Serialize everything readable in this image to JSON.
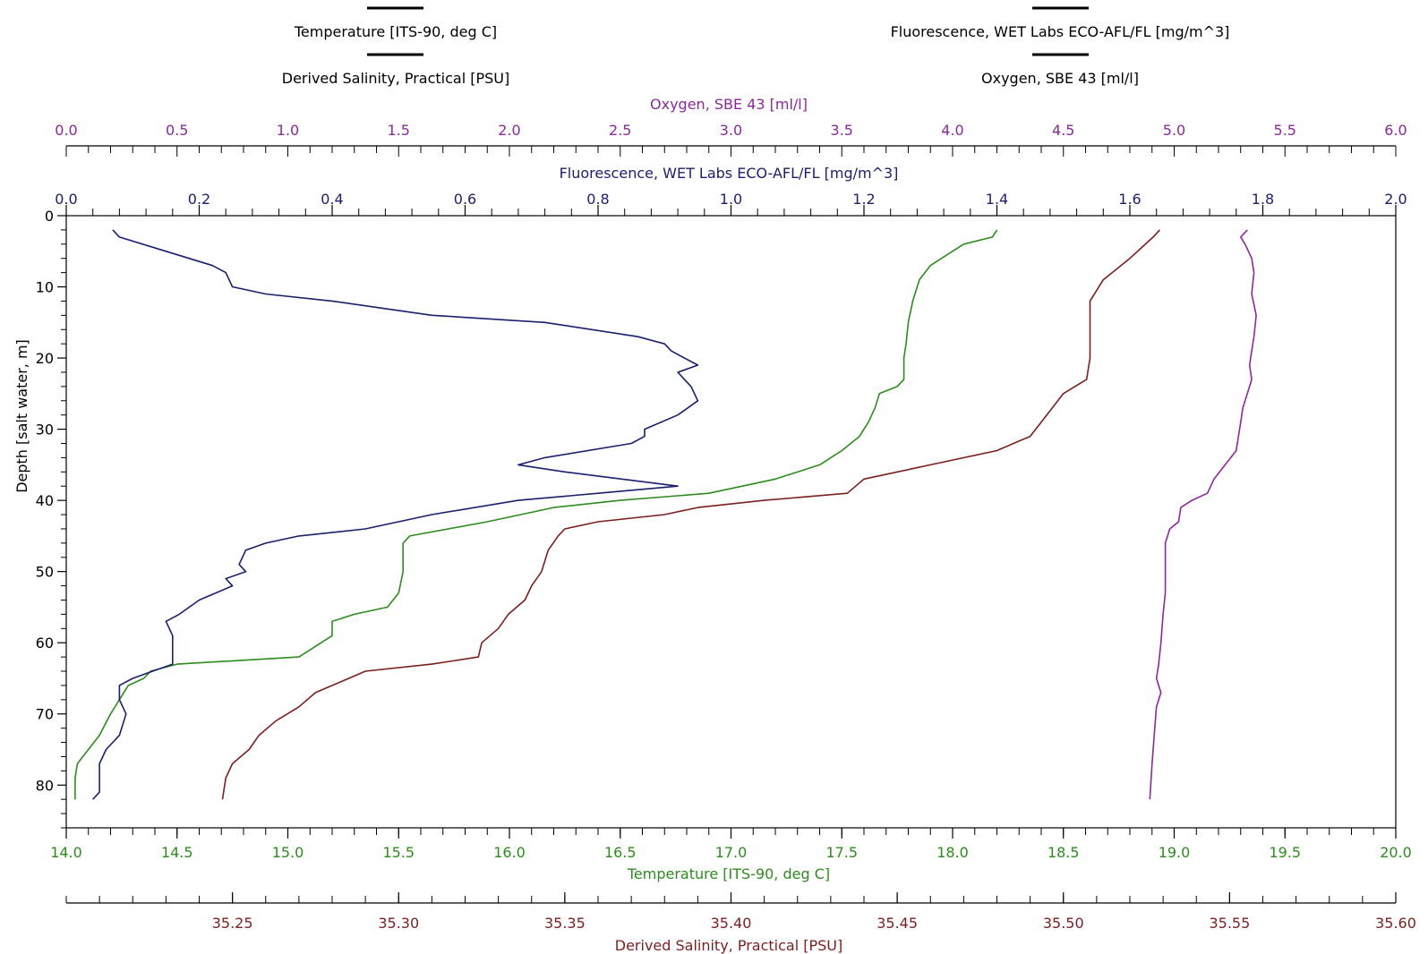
{
  "colors": {
    "temperature": "#2e8b1f",
    "salinity": "#7a1f1f",
    "fluorescence": "#1b1f6b",
    "oxygen": "#8a2a9a",
    "axis": "#000000",
    "background": "#ffffff"
  },
  "legend": {
    "items": [
      {
        "label": "Temperature [ITS-90, deg C]"
      },
      {
        "label": "Fluorescence, WET Labs ECO-AFL/FL [mg/m^3]"
      },
      {
        "label": "Derived Salinity, Practical [PSU]"
      },
      {
        "label": "Oxygen, SBE 43 [ml/l]"
      }
    ]
  },
  "chart_data": {
    "type": "line",
    "grid": false,
    "legend_position": "top",
    "axes": {
      "oxygen": {
        "label": "Oxygen, SBE 43 [ml/l]",
        "range": [
          0,
          6
        ],
        "ticks": [
          "0.0",
          "0.5",
          "1.0",
          "1.5",
          "2.0",
          "2.5",
          "3.0",
          "3.5",
          "4.0",
          "4.5",
          "5.0",
          "5.5",
          "6.0"
        ]
      },
      "fluorescence": {
        "label": "Fluorescence, WET Labs ECO-AFL/FL [mg/m^3]",
        "range": [
          0,
          2
        ],
        "ticks": [
          "0.0",
          "0.2",
          "0.4",
          "0.6",
          "0.8",
          "1.0",
          "1.2",
          "1.4",
          "1.6",
          "1.8",
          "2.0"
        ]
      },
      "depth": {
        "label": "Depth [salt water, m]",
        "range": [
          0,
          86
        ],
        "reversed": true,
        "ticks": [
          "0",
          "10",
          "20",
          "30",
          "40",
          "50",
          "60",
          "70",
          "80"
        ]
      },
      "temperature": {
        "label": "Temperature [ITS-90, deg C]",
        "range": [
          14,
          20
        ],
        "ticks": [
          "14.0",
          "14.5",
          "15.0",
          "15.5",
          "16.0",
          "16.5",
          "17.0",
          "17.5",
          "18.0",
          "18.5",
          "19.0",
          "19.5",
          "20.0"
        ]
      },
      "salinity": {
        "label": "Derived Salinity, Practical [PSU]",
        "range": [
          35.2,
          35.6
        ],
        "ticks": [
          "35.25",
          "35.30",
          "35.35",
          "35.40",
          "35.45",
          "35.50",
          "35.55",
          "35.60"
        ]
      }
    },
    "series": [
      {
        "name": "Temperature [ITS-90, deg C]",
        "axis": "temperature",
        "points": [
          [
            18.2,
            2
          ],
          [
            18.18,
            3
          ],
          [
            18.05,
            4
          ],
          [
            17.95,
            6
          ],
          [
            17.9,
            7
          ],
          [
            17.85,
            9
          ],
          [
            17.82,
            12
          ],
          [
            17.8,
            15
          ],
          [
            17.79,
            18
          ],
          [
            17.78,
            20
          ],
          [
            17.78,
            23
          ],
          [
            17.75,
            24
          ],
          [
            17.67,
            25
          ],
          [
            17.65,
            27
          ],
          [
            17.62,
            29
          ],
          [
            17.58,
            31
          ],
          [
            17.5,
            33
          ],
          [
            17.4,
            35
          ],
          [
            17.2,
            37
          ],
          [
            16.9,
            39
          ],
          [
            16.5,
            40
          ],
          [
            16.2,
            41
          ],
          [
            15.9,
            43
          ],
          [
            15.55,
            45
          ],
          [
            15.52,
            46
          ],
          [
            15.52,
            50
          ],
          [
            15.5,
            53
          ],
          [
            15.45,
            55
          ],
          [
            15.3,
            56
          ],
          [
            15.2,
            57
          ],
          [
            15.2,
            59
          ],
          [
            15.1,
            61
          ],
          [
            15.05,
            62
          ],
          [
            14.5,
            63
          ],
          [
            14.38,
            64
          ],
          [
            14.35,
            65
          ],
          [
            14.28,
            66
          ],
          [
            14.24,
            68
          ],
          [
            14.2,
            70
          ],
          [
            14.15,
            73
          ],
          [
            14.1,
            75
          ],
          [
            14.05,
            77
          ],
          [
            14.04,
            79
          ],
          [
            14.04,
            82
          ]
        ]
      },
      {
        "name": "Derived Salinity, Practical [PSU]",
        "axis": "salinity",
        "points": [
          [
            35.529,
            2
          ],
          [
            35.527,
            3
          ],
          [
            35.52,
            6
          ],
          [
            35.512,
            9
          ],
          [
            35.508,
            12
          ],
          [
            35.508,
            16
          ],
          [
            35.508,
            20
          ],
          [
            35.507,
            23
          ],
          [
            35.5,
            25
          ],
          [
            35.495,
            28
          ],
          [
            35.49,
            31
          ],
          [
            35.48,
            33
          ],
          [
            35.46,
            35
          ],
          [
            35.44,
            37
          ],
          [
            35.435,
            39
          ],
          [
            35.41,
            40
          ],
          [
            35.39,
            41
          ],
          [
            35.38,
            42
          ],
          [
            35.36,
            43
          ],
          [
            35.35,
            44
          ],
          [
            35.348,
            45
          ],
          [
            35.345,
            47
          ],
          [
            35.343,
            50
          ],
          [
            35.34,
            52
          ],
          [
            35.338,
            54
          ],
          [
            35.333,
            56
          ],
          [
            35.33,
            58
          ],
          [
            35.325,
            60
          ],
          [
            35.324,
            62
          ],
          [
            35.31,
            63
          ],
          [
            35.29,
            64
          ],
          [
            35.285,
            65
          ],
          [
            35.275,
            67
          ],
          [
            35.27,
            69
          ],
          [
            35.263,
            71
          ],
          [
            35.258,
            73
          ],
          [
            35.255,
            75
          ],
          [
            35.25,
            77
          ],
          [
            35.248,
            79
          ],
          [
            35.247,
            82
          ]
        ]
      },
      {
        "name": "Fluorescence, WET Labs ECO-AFL/FL [mg/m^3]",
        "axis": "fluorescence",
        "points": [
          [
            0.07,
            2
          ],
          [
            0.08,
            3
          ],
          [
            0.15,
            5
          ],
          [
            0.22,
            7
          ],
          [
            0.24,
            8
          ],
          [
            0.25,
            10
          ],
          [
            0.3,
            11
          ],
          [
            0.4,
            12
          ],
          [
            0.55,
            14
          ],
          [
            0.72,
            15
          ],
          [
            0.86,
            17
          ],
          [
            0.9,
            18
          ],
          [
            0.91,
            19
          ],
          [
            0.93,
            20
          ],
          [
            0.95,
            21
          ],
          [
            0.92,
            22
          ],
          [
            0.94,
            24
          ],
          [
            0.95,
            26
          ],
          [
            0.92,
            28
          ],
          [
            0.87,
            30
          ],
          [
            0.87,
            31
          ],
          [
            0.85,
            32
          ],
          [
            0.72,
            34
          ],
          [
            0.68,
            35
          ],
          [
            0.75,
            36
          ],
          [
            0.92,
            38
          ],
          [
            0.8,
            39
          ],
          [
            0.68,
            40
          ],
          [
            0.55,
            42
          ],
          [
            0.45,
            44
          ],
          [
            0.35,
            45
          ],
          [
            0.3,
            46
          ],
          [
            0.27,
            47
          ],
          [
            0.26,
            49
          ],
          [
            0.27,
            50
          ],
          [
            0.24,
            51
          ],
          [
            0.25,
            52
          ],
          [
            0.2,
            54
          ],
          [
            0.17,
            56
          ],
          [
            0.15,
            57
          ],
          [
            0.16,
            59
          ],
          [
            0.16,
            61
          ],
          [
            0.16,
            63
          ],
          [
            0.13,
            64
          ],
          [
            0.1,
            65
          ],
          [
            0.08,
            66
          ],
          [
            0.08,
            68
          ],
          [
            0.09,
            70
          ],
          [
            0.08,
            73
          ],
          [
            0.06,
            75
          ],
          [
            0.05,
            77
          ],
          [
            0.05,
            79
          ],
          [
            0.05,
            81
          ],
          [
            0.04,
            82
          ]
        ]
      },
      {
        "name": "Oxygen, SBE 43 [ml/l]",
        "axis": "oxygen",
        "points": [
          [
            5.33,
            2
          ],
          [
            5.3,
            3
          ],
          [
            5.32,
            4
          ],
          [
            5.35,
            6
          ],
          [
            5.36,
            8
          ],
          [
            5.35,
            11
          ],
          [
            5.37,
            14
          ],
          [
            5.36,
            17
          ],
          [
            5.35,
            19
          ],
          [
            5.34,
            21
          ],
          [
            5.35,
            23
          ],
          [
            5.33,
            25
          ],
          [
            5.31,
            27
          ],
          [
            5.3,
            29
          ],
          [
            5.29,
            31
          ],
          [
            5.28,
            33
          ],
          [
            5.23,
            35
          ],
          [
            5.18,
            37
          ],
          [
            5.15,
            39
          ],
          [
            5.08,
            40
          ],
          [
            5.03,
            41
          ],
          [
            5.02,
            43
          ],
          [
            4.98,
            44
          ],
          [
            4.96,
            46
          ],
          [
            4.96,
            50
          ],
          [
            4.96,
            53
          ],
          [
            4.95,
            56
          ],
          [
            4.94,
            60
          ],
          [
            4.93,
            63
          ],
          [
            4.92,
            65
          ],
          [
            4.94,
            67
          ],
          [
            4.92,
            69
          ],
          [
            4.91,
            73
          ],
          [
            4.9,
            77
          ],
          [
            4.89,
            82
          ]
        ]
      }
    ]
  }
}
